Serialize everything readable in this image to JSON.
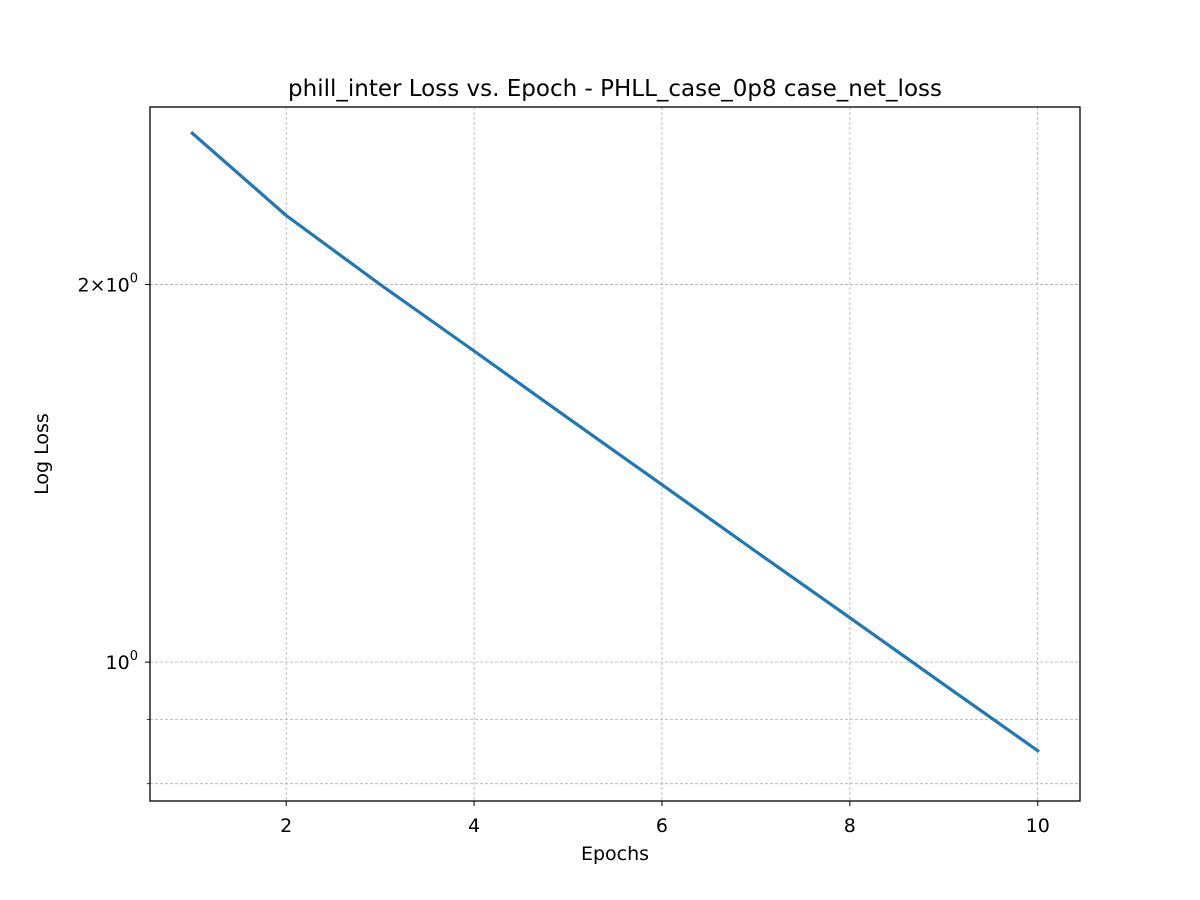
{
  "chart_data": {
    "type": "line",
    "title": "phill_inter Loss vs. Epoch - PHLL_case_0p8 case_net_loss",
    "xlabel": "Epochs",
    "ylabel": "Log Loss",
    "yscale": "log",
    "grid": true,
    "xlim": [
      0.55,
      10.45
    ],
    "ylim": [
      0.775,
      2.77
    ],
    "xticks": [
      {
        "value": 2,
        "label": "2"
      },
      {
        "value": 4,
        "label": "4"
      },
      {
        "value": 6,
        "label": "6"
      },
      {
        "value": 8,
        "label": "8"
      },
      {
        "value": 10,
        "label": "10"
      }
    ],
    "yticks_major": [
      {
        "value": 1,
        "label": "10",
        "exp": "0"
      },
      {
        "value": 2,
        "label": "2×10",
        "exp": "0"
      }
    ],
    "yticks_minor": [
      0.8,
      0.9
    ],
    "series": [
      {
        "color": "#1f77b4",
        "x": [
          1,
          2,
          3,
          4,
          5,
          6,
          7,
          8,
          9,
          10
        ],
        "y": [
          2.64,
          2.27,
          2.0,
          1.77,
          1.565,
          1.385,
          1.225,
          1.085,
          0.96,
          0.85
        ]
      }
    ],
    "colors": {
      "line": "#1f77b4",
      "grid": "#b0b0b0",
      "axes": "#000000"
    }
  }
}
